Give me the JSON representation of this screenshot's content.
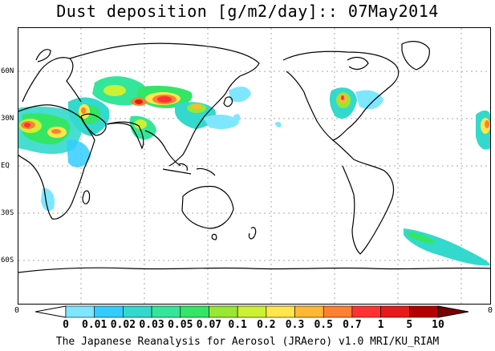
{
  "title": "Dust deposition [g/m2/day]:: 07May2014",
  "latitude_labels": [
    "60N",
    "30N",
    "EQ",
    "30S",
    "60S"
  ],
  "edge_labels": {
    "left": "0",
    "right": "0"
  },
  "colorbar": {
    "labels": [
      "0",
      "0.01",
      "0.02",
      "0.03",
      "0.05",
      "0.07",
      "0.1",
      "0.2",
      "0.3",
      "0.5",
      "0.7",
      "1",
      "5",
      "10"
    ],
    "colors": [
      "#ffffff",
      "#7fe6ff",
      "#33ccff",
      "#33d9cc",
      "#33e699",
      "#33e666",
      "#99e633",
      "#ccf033",
      "#ffe64d",
      "#ffb833",
      "#ff8033",
      "#ff3333",
      "#e61a1a",
      "#b30000",
      "#7a0000"
    ]
  },
  "credit": "The Japanese Reanalysis for Aerosol (JRAero) v1.0 MRI/KU_RIAM"
}
